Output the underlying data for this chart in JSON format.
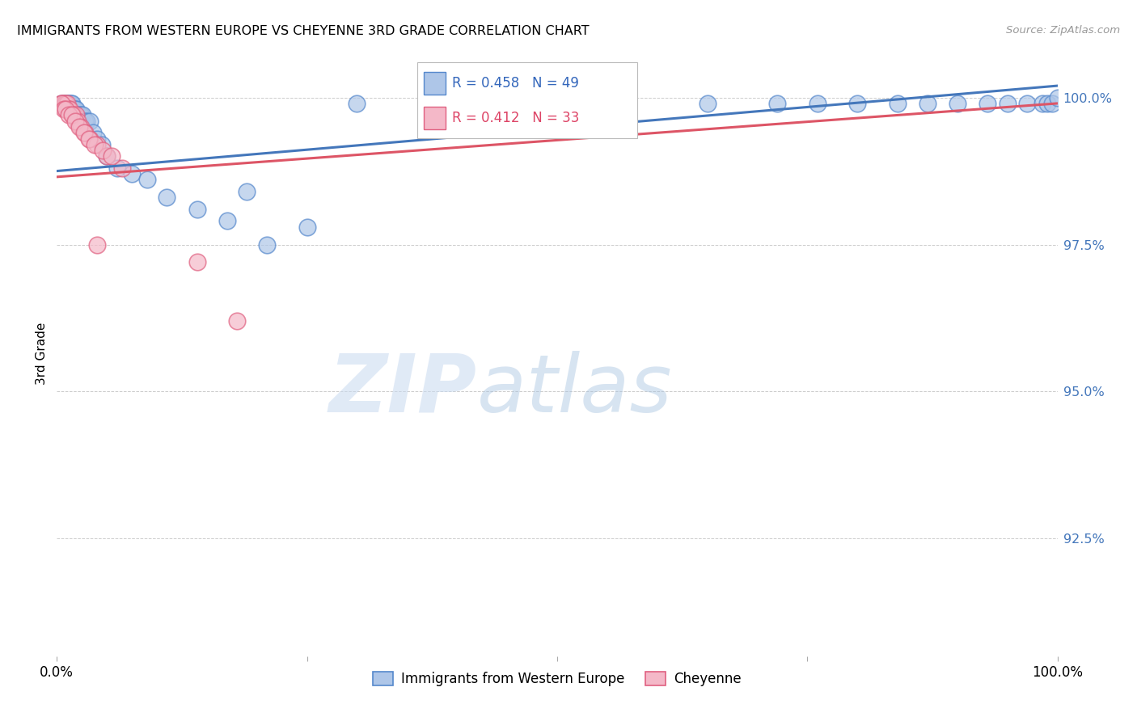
{
  "title": "IMMIGRANTS FROM WESTERN EUROPE VS CHEYENNE 3RD GRADE CORRELATION CHART",
  "source": "Source: ZipAtlas.com",
  "ylabel": "3rd Grade",
  "ylabel_ticks": [
    "100.0%",
    "97.5%",
    "95.0%",
    "92.5%"
  ],
  "ylabel_tick_values": [
    1.0,
    0.975,
    0.95,
    0.925
  ],
  "xlim": [
    0.0,
    1.0
  ],
  "ylim": [
    0.905,
    1.008
  ],
  "blue_color": "#aec6e8",
  "pink_color": "#f4b8c8",
  "blue_edge_color": "#5588cc",
  "pink_edge_color": "#e06080",
  "blue_line_color": "#4477bb",
  "pink_line_color": "#dd5566",
  "legend_R_blue": "R = 0.458",
  "legend_N_blue": "N = 49",
  "legend_R_pink": "R = 0.412",
  "legend_N_pink": "N = 33",
  "watermark_zip": "ZIP",
  "watermark_atlas": "atlas",
  "blue_scatter_x": [
    0.005,
    0.007,
    0.008,
    0.009,
    0.01,
    0.011,
    0.012,
    0.013,
    0.014,
    0.015,
    0.016,
    0.017,
    0.018,
    0.019,
    0.02,
    0.022,
    0.024,
    0.026,
    0.028,
    0.03,
    0.033,
    0.036,
    0.04,
    0.045,
    0.05,
    0.06,
    0.075,
    0.09,
    0.11,
    0.14,
    0.17,
    0.21,
    0.19,
    0.25,
    0.3,
    0.65,
    0.72,
    0.76,
    0.8,
    0.84,
    0.87,
    0.9,
    0.93,
    0.95,
    0.97,
    0.985,
    0.99,
    0.995,
    1.0
  ],
  "blue_scatter_y": [
    0.999,
    0.999,
    0.999,
    0.999,
    0.999,
    0.999,
    0.999,
    0.999,
    0.999,
    0.999,
    0.998,
    0.998,
    0.998,
    0.998,
    0.997,
    0.997,
    0.997,
    0.997,
    0.996,
    0.996,
    0.996,
    0.994,
    0.993,
    0.992,
    0.99,
    0.988,
    0.987,
    0.986,
    0.983,
    0.981,
    0.979,
    0.975,
    0.984,
    0.978,
    0.999,
    0.999,
    0.999,
    0.999,
    0.999,
    0.999,
    0.999,
    0.999,
    0.999,
    0.999,
    0.999,
    0.999,
    0.999,
    0.999,
    1.0
  ],
  "pink_scatter_x": [
    0.005,
    0.006,
    0.008,
    0.009,
    0.01,
    0.011,
    0.012,
    0.013,
    0.015,
    0.017,
    0.019,
    0.021,
    0.024,
    0.028,
    0.033,
    0.04,
    0.05,
    0.065,
    0.005,
    0.007,
    0.009,
    0.012,
    0.015,
    0.018,
    0.022,
    0.027,
    0.032,
    0.038,
    0.046,
    0.055,
    0.04,
    0.14,
    0.18
  ],
  "pink_scatter_y": [
    0.999,
    0.999,
    0.999,
    0.999,
    0.999,
    0.998,
    0.998,
    0.998,
    0.997,
    0.997,
    0.997,
    0.996,
    0.995,
    0.994,
    0.993,
    0.992,
    0.99,
    0.988,
    0.999,
    0.998,
    0.998,
    0.997,
    0.997,
    0.996,
    0.995,
    0.994,
    0.993,
    0.992,
    0.991,
    0.99,
    0.975,
    0.972,
    0.962
  ]
}
